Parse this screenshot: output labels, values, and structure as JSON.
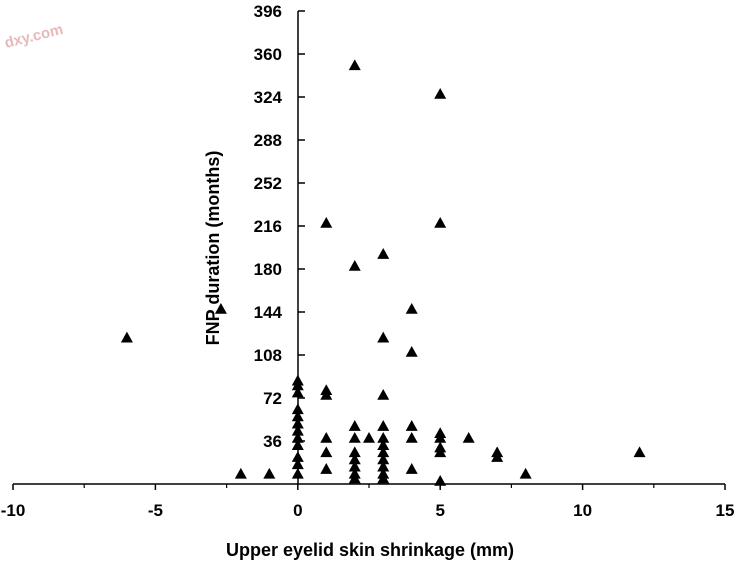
{
  "watermark": "dxy.com",
  "chart_data": {
    "type": "scatter",
    "title": "",
    "xlabel": "Upper eyelid skin shrinkage (mm)",
    "ylabel": "FNP duration (months)",
    "xlim": [
      -10,
      15
    ],
    "ylim": [
      0,
      396
    ],
    "xticks": [
      -10,
      -5,
      0,
      5,
      10,
      15
    ],
    "yticks": [
      36,
      72,
      108,
      144,
      180,
      216,
      252,
      288,
      324,
      360,
      396
    ],
    "marker": "triangle",
    "marker_color": "#000000",
    "grid": false,
    "legend": "none",
    "points": [
      [
        -6,
        120
      ],
      [
        -2.7,
        144
      ],
      [
        -2,
        6
      ],
      [
        -1,
        6
      ],
      [
        0,
        84
      ],
      [
        0,
        80
      ],
      [
        0,
        74
      ],
      [
        0,
        60
      ],
      [
        0,
        54
      ],
      [
        0,
        48
      ],
      [
        0,
        42
      ],
      [
        0,
        36
      ],
      [
        0,
        30
      ],
      [
        0,
        20
      ],
      [
        0,
        14
      ],
      [
        0,
        6
      ],
      [
        1,
        216
      ],
      [
        1,
        76
      ],
      [
        1,
        72
      ],
      [
        1,
        36
      ],
      [
        1,
        24
      ],
      [
        1,
        10
      ],
      [
        2,
        348
      ],
      [
        2,
        180
      ],
      [
        2,
        46
      ],
      [
        2,
        36
      ],
      [
        2,
        24
      ],
      [
        2,
        18
      ],
      [
        2,
        12
      ],
      [
        2,
        6
      ],
      [
        2,
        2
      ],
      [
        2.5,
        36
      ],
      [
        3,
        190
      ],
      [
        3,
        120
      ],
      [
        3,
        72
      ],
      [
        3,
        46
      ],
      [
        3,
        36
      ],
      [
        3,
        30
      ],
      [
        3,
        24
      ],
      [
        3,
        18
      ],
      [
        3,
        12
      ],
      [
        3,
        6
      ],
      [
        3,
        2
      ],
      [
        4,
        144
      ],
      [
        4,
        108
      ],
      [
        4,
        46
      ],
      [
        4,
        36
      ],
      [
        4,
        10
      ],
      [
        5,
        324
      ],
      [
        5,
        216
      ],
      [
        5,
        40
      ],
      [
        5,
        36
      ],
      [
        5,
        28
      ],
      [
        5,
        24
      ],
      [
        5,
        0
      ],
      [
        6,
        36
      ],
      [
        7,
        24
      ],
      [
        7,
        20
      ],
      [
        8,
        6
      ],
      [
        12,
        24
      ]
    ]
  }
}
